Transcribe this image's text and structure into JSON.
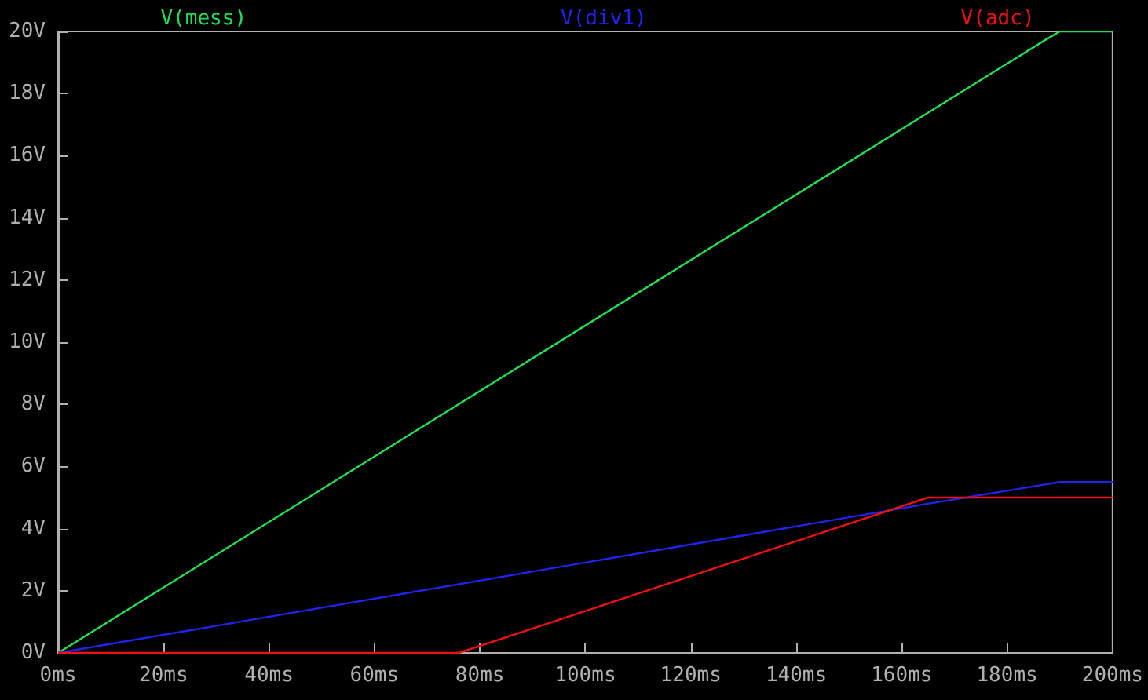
{
  "chart_data": {
    "type": "line",
    "legend": "top",
    "grid": false,
    "marker": "none",
    "line_style": "solid",
    "xlim": [
      0,
      200
    ],
    "xticks": [
      {
        "value": 0,
        "label": "0ms"
      },
      {
        "value": 20,
        "label": "20ms"
      },
      {
        "value": 40,
        "label": "40ms"
      },
      {
        "value": 60,
        "label": "60ms"
      },
      {
        "value": 80,
        "label": "80ms"
      },
      {
        "value": 100,
        "label": "100ms"
      },
      {
        "value": 120,
        "label": "120ms"
      },
      {
        "value": 140,
        "label": "140ms"
      },
      {
        "value": 160,
        "label": "160ms"
      },
      {
        "value": 180,
        "label": "180ms"
      },
      {
        "value": 200,
        "label": "200ms"
      }
    ],
    "ylim": [
      0,
      20
    ],
    "yticks": [
      {
        "value": 0,
        "label": "0V"
      },
      {
        "value": 2,
        "label": "2V"
      },
      {
        "value": 4,
        "label": "4V"
      },
      {
        "value": 6,
        "label": "6V"
      },
      {
        "value": 8,
        "label": "8V"
      },
      {
        "value": 10,
        "label": "10V"
      },
      {
        "value": 12,
        "label": "12V"
      },
      {
        "value": 14,
        "label": "14V"
      },
      {
        "value": 16,
        "label": "16V"
      },
      {
        "value": 18,
        "label": "18V"
      },
      {
        "value": 20,
        "label": "20V"
      }
    ],
    "series": [
      {
        "name": "V(mess)",
        "color": "#22dd55",
        "x": [
          0,
          187,
          190,
          200
        ],
        "values": [
          0,
          19.7,
          20,
          20
        ]
      },
      {
        "name": "V(div1)",
        "color": "#2222ee",
        "x": [
          0,
          165,
          190,
          200
        ],
        "values": [
          0,
          4.8,
          5.5,
          5.5
        ]
      },
      {
        "name": "V(adc)",
        "color": "#ee1111",
        "x": [
          0,
          76,
          165,
          200
        ],
        "values": [
          0,
          0,
          5,
          5
        ]
      }
    ]
  }
}
